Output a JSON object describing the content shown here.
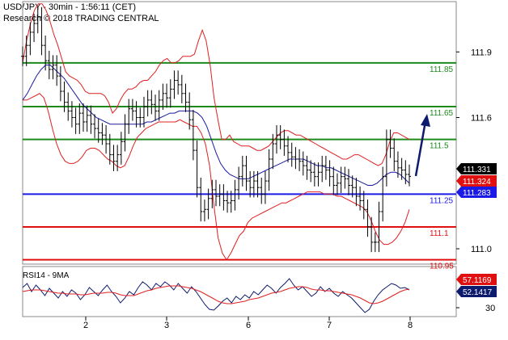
{
  "header": {
    "title": "USD/JPY - 30min - 1:56:11 (CET)",
    "subtitle": "Research © 2018 TRADING CENTRAL"
  },
  "rsi_header": "RSI14 - 9MA",
  "colors": {
    "price": "#000000",
    "bollinger": "#e02020",
    "ma_blue": "#1a1aa0",
    "resistance": "#1e8a1e",
    "pivot": "#1a1ae6",
    "support": "#e01010",
    "arrow": "#0d1b6e",
    "frame": "#555555"
  },
  "chart_data": {
    "type": "line",
    "title": "USD/JPY - 30min - 1:56:11 (CET)",
    "x_ticks": [
      "2",
      "3",
      "6",
      "7",
      "8"
    ],
    "y_ticks": [
      {
        "label": "111.9",
        "value": 111.9
      },
      {
        "label": "111.6",
        "value": 111.6
      },
      {
        "label": "111.0",
        "value": 111.0
      }
    ],
    "ylim": [
      110.93,
      112.13
    ],
    "levels": [
      {
        "label": "111.85",
        "value": 111.85,
        "kind": "resistance"
      },
      {
        "label": "111.65",
        "value": 111.65,
        "kind": "resistance"
      },
      {
        "label": "111.5",
        "value": 111.5,
        "kind": "resistance"
      },
      {
        "label": "111.25",
        "value": 111.25,
        "kind": "pivot"
      },
      {
        "label": "111.1",
        "value": 111.1,
        "kind": "support"
      },
      {
        "label": "110.95",
        "value": 110.95,
        "kind": "support"
      }
    ],
    "price_tags": [
      {
        "label": "111.331",
        "value": 111.331,
        "bg": "#000000",
        "fg": "#ffffff"
      },
      {
        "label": "111.324",
        "value": 111.324,
        "bg": "#e01010",
        "fg": "#ffffff"
      },
      {
        "label": "111.283",
        "value": 111.283,
        "bg": "#1a1ae6",
        "fg": "#ffffff"
      }
    ],
    "series": [
      {
        "name": "price",
        "values": [
          111.88,
          111.93,
          111.99,
          112.03,
          112.06,
          111.93,
          111.86,
          111.82,
          111.84,
          111.79,
          111.72,
          111.67,
          111.63,
          111.6,
          111.57,
          111.62,
          111.58,
          111.61,
          111.57,
          111.55,
          111.53,
          111.52,
          111.48,
          111.43,
          111.4,
          111.43,
          111.49,
          111.57,
          111.64,
          111.63,
          111.6,
          111.6,
          111.65,
          111.68,
          111.66,
          111.63,
          111.68,
          111.71,
          111.69,
          111.73,
          111.77,
          111.75,
          111.71,
          111.67,
          111.59,
          111.45,
          111.28,
          111.17,
          111.18,
          111.23,
          111.27,
          111.24,
          111.25,
          111.22,
          111.21,
          111.22,
          111.27,
          111.33,
          111.38,
          111.31,
          111.28,
          111.31,
          111.28,
          111.25,
          111.31,
          111.41,
          111.48,
          111.52,
          111.5,
          111.47,
          111.44,
          111.42,
          111.41,
          111.4,
          111.38,
          111.36,
          111.35,
          111.33,
          111.35,
          111.38,
          111.36,
          111.33,
          111.29,
          111.3,
          111.33,
          111.32,
          111.29,
          111.28,
          111.24,
          111.22,
          111.18,
          111.1,
          111.03,
          111.03,
          111.17,
          111.33,
          111.5,
          111.46,
          111.4,
          111.37,
          111.36,
          111.34,
          111.331
        ]
      },
      {
        "name": "bollinger_upper",
        "values": [
          111.85,
          111.95,
          112.03,
          112.09,
          112.12,
          112.12,
          112.09,
          112.04,
          111.98,
          111.93,
          111.87,
          111.81,
          111.79,
          111.78,
          111.77,
          111.75,
          111.72,
          111.71,
          111.71,
          111.71,
          111.71,
          111.7,
          111.67,
          111.62,
          111.64,
          111.68,
          111.71,
          111.73,
          111.73,
          111.74,
          111.76,
          111.77,
          111.77,
          111.79,
          111.81,
          111.84,
          111.86,
          111.87,
          111.85,
          111.85,
          111.86,
          111.88,
          111.88,
          111.88,
          111.89,
          111.95,
          112.0,
          111.95,
          111.84,
          111.69,
          111.59,
          111.5,
          111.5,
          111.52,
          111.49,
          111.48,
          111.47,
          111.47,
          111.47,
          111.46,
          111.45,
          111.45,
          111.46,
          111.47,
          111.49,
          111.51,
          111.53,
          111.54,
          111.54,
          111.53,
          111.52,
          111.52,
          111.51,
          111.5,
          111.49,
          111.48,
          111.47,
          111.46,
          111.45,
          111.44,
          111.43,
          111.42,
          111.41,
          111.41,
          111.42,
          111.43,
          111.43,
          111.42,
          111.41,
          111.4,
          111.39,
          111.38,
          111.39,
          111.43,
          111.49,
          111.53,
          111.53,
          111.52,
          111.51,
          111.5
        ]
      },
      {
        "name": "bollinger_lower",
        "values": [
          111.68,
          111.68,
          111.69,
          111.7,
          111.71,
          111.69,
          111.63,
          111.55,
          111.48,
          111.43,
          111.4,
          111.39,
          111.39,
          111.4,
          111.42,
          111.45,
          111.46,
          111.46,
          111.45,
          111.43,
          111.41,
          111.4,
          111.38,
          111.37,
          111.38,
          111.42,
          111.47,
          111.51,
          111.53,
          111.55,
          111.56,
          111.57,
          111.58,
          111.58,
          111.58,
          111.58,
          111.58,
          111.59,
          111.58,
          111.57,
          111.56,
          111.56,
          111.53,
          111.48,
          111.38,
          111.2,
          111.05,
          110.98,
          110.95,
          110.98,
          111.02,
          111.06,
          111.08,
          111.12,
          111.14,
          111.15,
          111.16,
          111.17,
          111.18,
          111.19,
          111.2,
          111.21,
          111.21,
          111.22,
          111.23,
          111.24,
          111.25,
          111.26,
          111.26,
          111.26,
          111.26,
          111.25,
          111.25,
          111.25,
          111.24,
          111.24,
          111.23,
          111.22,
          111.21,
          111.2,
          111.19,
          111.17,
          111.13,
          111.08,
          111.04,
          111.02,
          111.02,
          111.03,
          111.05,
          111.08,
          111.12,
          111.18
        ]
      },
      {
        "name": "moving_average",
        "values": [
          111.68,
          111.71,
          111.75,
          111.79,
          111.82,
          111.84,
          111.84,
          111.82,
          111.8,
          111.78,
          111.75,
          111.72,
          111.69,
          111.66,
          111.64,
          111.62,
          111.6,
          111.59,
          111.58,
          111.57,
          111.57,
          111.57,
          111.57,
          111.57,
          111.57,
          111.57,
          111.57,
          111.58,
          111.58,
          111.59,
          111.6,
          111.61,
          111.62,
          111.62,
          111.63,
          111.63,
          111.63,
          111.63,
          111.62,
          111.6,
          111.56,
          111.5,
          111.44,
          111.39,
          111.36,
          111.34,
          111.33,
          111.32,
          111.32,
          111.32,
          111.33,
          111.34,
          111.35,
          111.36,
          111.37,
          111.38,
          111.39,
          111.4,
          111.41,
          111.41,
          111.41,
          111.41,
          111.4,
          111.39,
          111.38,
          111.38,
          111.37,
          111.37,
          111.36,
          111.35,
          111.34,
          111.33,
          111.32,
          111.31,
          111.3,
          111.29,
          111.29,
          111.3,
          111.32,
          111.34,
          111.35,
          111.35,
          111.34,
          111.32,
          111.3
        ]
      }
    ],
    "rsi": {
      "y_ticks": [
        {
          "label": "30",
          "value": 30
        }
      ],
      "ylim": [
        20,
        80
      ],
      "tags": [
        {
          "label": "57.1169",
          "value": 57.1169,
          "bg": "#e01010",
          "fg": "#ffffff"
        },
        {
          "label": "52.1417",
          "value": 52.1417,
          "bg": "#0d1b6e",
          "fg": "#ffffff"
        }
      ],
      "series": [
        {
          "name": "RSI14",
          "values": [
            55,
            60,
            50,
            58,
            52,
            45,
            54,
            48,
            42,
            50,
            44,
            52,
            48,
            40,
            46,
            55,
            50,
            45,
            52,
            58,
            50,
            44,
            36,
            42,
            50,
            46,
            55,
            62,
            58,
            52,
            60,
            56,
            62,
            58,
            52,
            60,
            54,
            48,
            56,
            50,
            42,
            34,
            28,
            27,
            32,
            38,
            42,
            36,
            44,
            40,
            46,
            42,
            50,
            46,
            52,
            58,
            54,
            48,
            55,
            60,
            66,
            58,
            52,
            56,
            50,
            44,
            48,
            56,
            50,
            54,
            48,
            44,
            50,
            46,
            42,
            36,
            30,
            24,
            28,
            38,
            46,
            52,
            56,
            60,
            58,
            54,
            55,
            52
          ]
        },
        {
          "name": "9MA",
          "values": [
            50,
            51,
            52,
            52,
            52,
            51,
            50,
            49,
            48,
            48,
            47,
            47,
            47,
            46,
            46,
            47,
            48,
            48,
            48,
            49,
            49,
            48,
            46,
            45,
            45,
            45,
            47,
            49,
            51,
            52,
            54,
            55,
            56,
            57,
            57,
            57,
            56,
            55,
            54,
            52,
            50,
            47,
            44,
            41,
            38,
            36,
            35,
            35,
            36,
            37,
            38,
            40,
            41,
            42,
            44,
            46,
            48,
            49,
            50,
            52,
            54,
            55,
            56,
            56,
            55,
            53,
            52,
            52,
            51,
            51,
            50,
            49,
            48,
            47,
            46,
            44,
            42,
            39,
            36,
            35,
            36,
            38,
            41,
            44,
            47,
            50,
            52,
            53
          ]
        }
      ]
    }
  }
}
